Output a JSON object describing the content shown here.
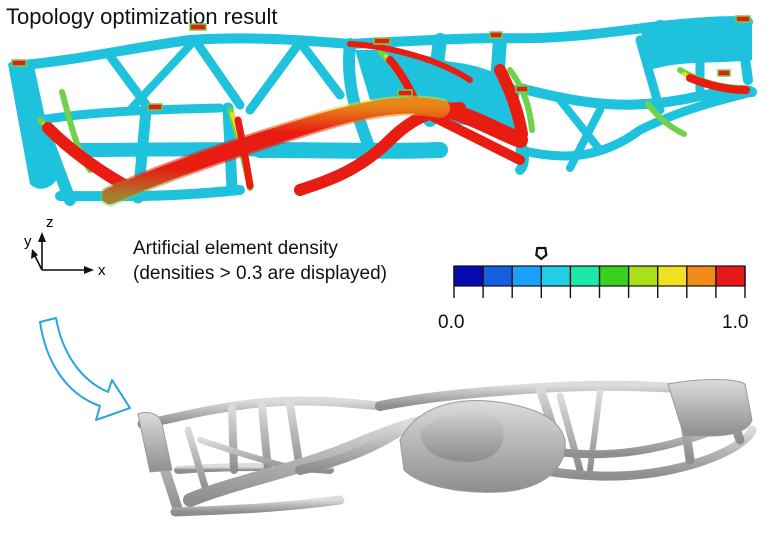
{
  "title": "Topology optimization result",
  "legend": {
    "line1": "Artificial element density",
    "line2": "(densities > 0.3 are displayed)"
  },
  "colorbar": {
    "min_label": "0.0",
    "max_label": "1.0",
    "colors": [
      "#0a0ab4",
      "#1460e0",
      "#1aa0ff",
      "#20cfe6",
      "#1ee8a8",
      "#3ad21c",
      "#a8e01a",
      "#f0e020",
      "#f08a1a",
      "#e81818"
    ],
    "marker_value": 0.3
  },
  "triad": {
    "z": "z",
    "y": "y",
    "x": "x"
  },
  "colors": {
    "mesh_cyan": "#1fc2dc",
    "mesh_green": "#6fd24a",
    "mesh_yellow": "#e8e020",
    "mesh_red": "#e81c10",
    "smooth_gray": "#b9b9b9",
    "arrow_blue": "#2aa4e0"
  }
}
